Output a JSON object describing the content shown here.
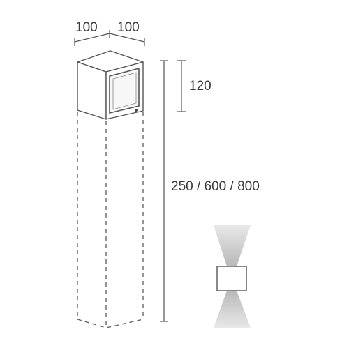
{
  "dimensions": {
    "width_left": "100",
    "width_right": "100",
    "head_height": "120",
    "total_height": "250 / 600 / 800"
  },
  "colors": {
    "line": "#555555",
    "dashed": "#666666",
    "lens_fill": "#f7f7f7",
    "beam": "#cfcfcf"
  },
  "icons": {
    "beam_icon": "up-down-light-beam-icon"
  }
}
